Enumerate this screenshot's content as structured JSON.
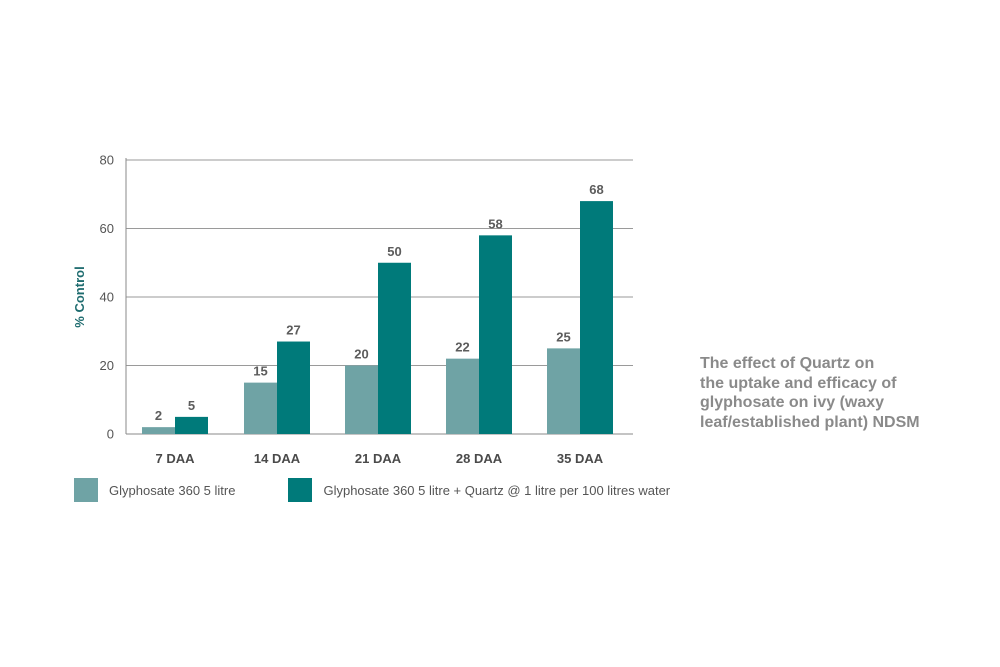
{
  "chart_data": {
    "type": "bar",
    "categories": [
      "7 DAA",
      "14 DAA",
      "21 DAA",
      "28 DAA",
      "35 DAA"
    ],
    "series": [
      {
        "name": "Glyphosate 360 5 litre",
        "values": [
          2,
          15,
          20,
          22,
          25
        ],
        "color": "#6fa3a5"
      },
      {
        "name": "Glyphosate 360 5 litre + Quartz @ 1 litre per 100 litres water",
        "values": [
          5,
          27,
          50,
          58,
          68
        ],
        "color": "#007a7a"
      }
    ],
    "ylabel": "% Control",
    "ylabel_color": "#1d6b6e",
    "yticks": [
      0,
      20,
      40,
      60,
      80
    ],
    "ylim": [
      0,
      80
    ],
    "grid": true,
    "legend_position": "bottom"
  },
  "caption": {
    "lines": [
      "The effect of Quartz on",
      "the uptake and efficacy of",
      "glyphosate on ivy (waxy",
      "leaf/established plant) NDSM"
    ]
  }
}
